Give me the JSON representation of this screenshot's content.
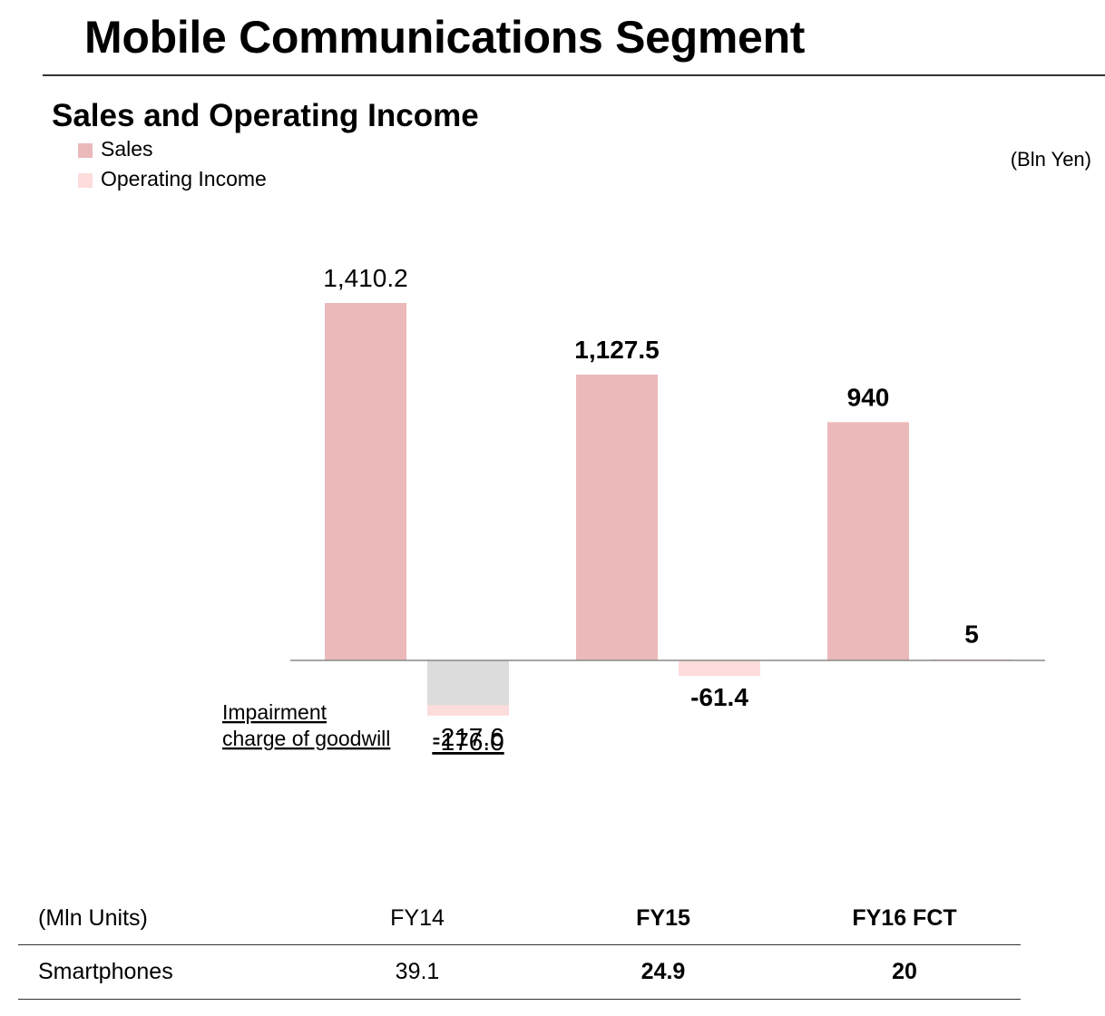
{
  "page": {
    "title": "Mobile Communications Segment"
  },
  "chart_data": {
    "type": "bar",
    "title": "Sales and Operating Income",
    "unit": "(Bln Yen)",
    "categories": [
      "FY14",
      "FY15",
      "FY16 FCT"
    ],
    "series": [
      {
        "name": "Sales",
        "color": "#ebb9ba",
        "values": [
          1410.2,
          1127.5,
          940
        ],
        "labels": [
          "1,410.2",
          "1,127.5",
          "940"
        ]
      },
      {
        "name": "Operating Income",
        "color": "#fddcdc",
        "values": [
          -217.6,
          -61.4,
          5
        ],
        "labels": [
          "-217.6",
          "-61.4",
          "5"
        ]
      }
    ],
    "annotation": {
      "text_line1": "Impairment",
      "text_line2": "charge of goodwill",
      "value": -176.0,
      "label": "-176.0",
      "color": "#dcdcdc",
      "category": "FY14"
    },
    "bold_categories": [
      "FY15",
      "FY16 FCT"
    ],
    "ylim": [
      -217.6,
      1410.2
    ],
    "grid": false
  },
  "table": {
    "unit_label": "(Mln Units)",
    "columns": [
      "FY14",
      "FY15",
      "FY16 FCT"
    ],
    "row_label": "Smartphones",
    "values": [
      "39.1",
      "24.9",
      "20"
    ]
  }
}
